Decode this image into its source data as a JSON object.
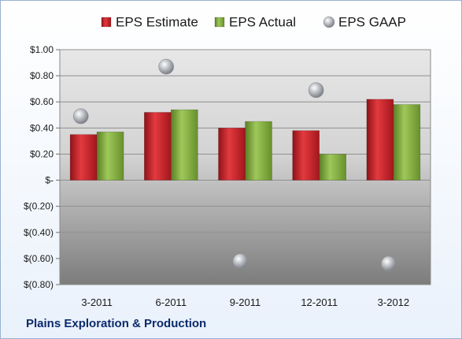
{
  "chart_data": {
    "type": "bar",
    "categories": [
      "3-2011",
      "6-2011",
      "9-2011",
      "12-2011",
      "3-2012"
    ],
    "series": [
      {
        "name": "EPS Estimate",
        "kind": "bar",
        "color": "#c0272d",
        "values": [
          0.35,
          0.52,
          0.4,
          0.38,
          0.62
        ]
      },
      {
        "name": "EPS Actual",
        "kind": "bar",
        "color": "#7aa33a",
        "values": [
          0.37,
          0.54,
          0.45,
          0.2,
          0.58
        ]
      },
      {
        "name": "EPS GAAP",
        "kind": "scatter",
        "color": "#a0a4ab",
        "values": [
          0.49,
          0.87,
          -0.62,
          0.69,
          -0.64
        ]
      }
    ],
    "ylim": [
      -0.8,
      1.0
    ],
    "yticks": [
      1.0,
      0.8,
      0.6,
      0.4,
      0.2,
      0,
      -0.2,
      -0.4,
      -0.6,
      -0.8
    ],
    "ytick_labels": [
      "$1.00",
      "$0.80",
      "$0.60",
      "$0.40",
      "$0.20",
      "$-",
      "$(0.20)",
      "$(0.40)",
      "$(0.60)",
      "$(0.80)"
    ],
    "grid": true,
    "legend_position": "top"
  },
  "company_label": "Plains Exploration & Production"
}
